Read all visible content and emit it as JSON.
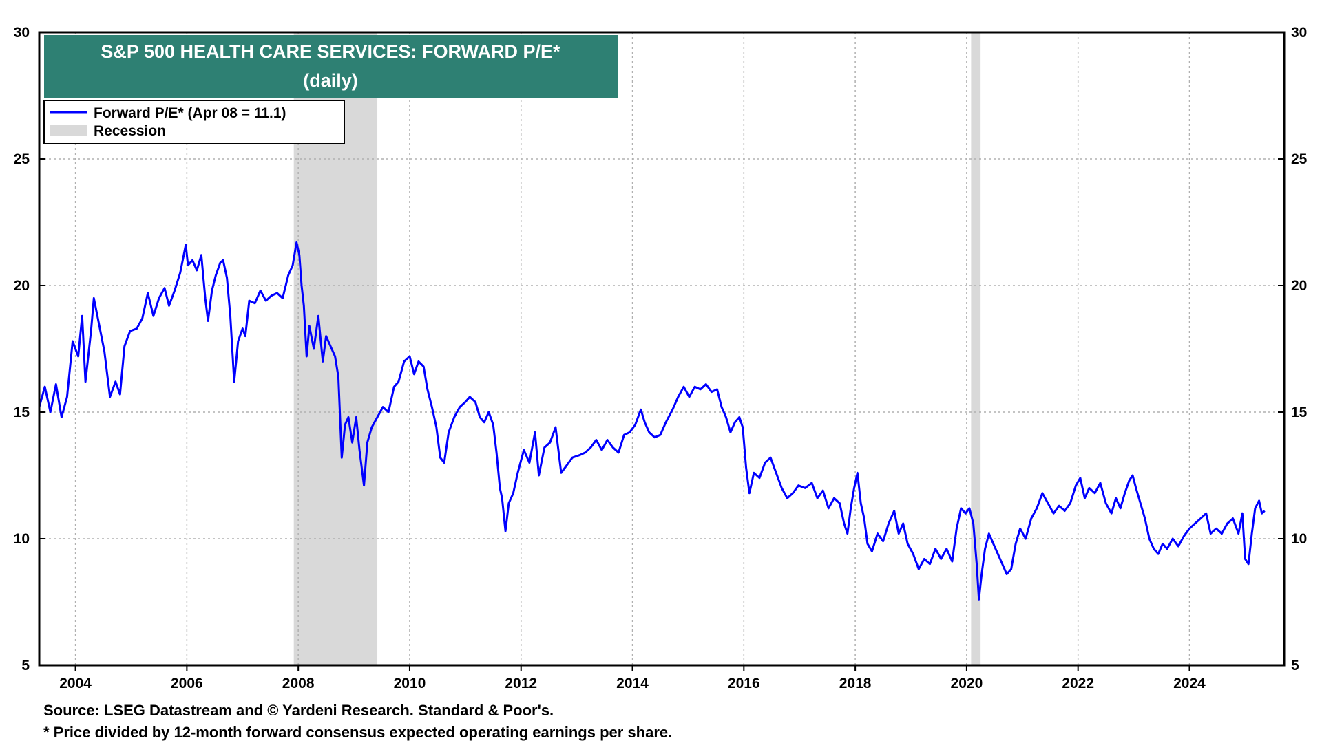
{
  "chart_data": {
    "type": "line",
    "title": "S&P 500 HEALTH CARE SERVICES: FORWARD P/E*",
    "subtitle": "(daily)",
    "xlabel": "",
    "ylabel": "",
    "x_range": [
      2003.35,
      2025.7
    ],
    "ylim": [
      5,
      30
    ],
    "x_ticks": [
      "2004",
      "2006",
      "2008",
      "2010",
      "2012",
      "2014",
      "2016",
      "2018",
      "2020",
      "2022",
      "2024"
    ],
    "y_ticks": [
      "5",
      "10",
      "15",
      "20",
      "25",
      "30"
    ],
    "grid": true,
    "legend_position": "top-left",
    "series": [
      {
        "name": "Forward P/E* (Apr 08 = 11.1)",
        "color": "#0000ff",
        "points": [
          [
            2003.35,
            15.2
          ],
          [
            2003.45,
            16.0
          ],
          [
            2003.55,
            15.0
          ],
          [
            2003.65,
            16.1
          ],
          [
            2003.75,
            14.8
          ],
          [
            2003.85,
            15.6
          ],
          [
            2003.95,
            17.8
          ],
          [
            2004.05,
            17.2
          ],
          [
            2004.12,
            18.8
          ],
          [
            2004.18,
            16.2
          ],
          [
            2004.28,
            18.2
          ],
          [
            2004.33,
            19.5
          ],
          [
            2004.42,
            18.5
          ],
          [
            2004.52,
            17.4
          ],
          [
            2004.62,
            15.6
          ],
          [
            2004.72,
            16.2
          ],
          [
            2004.8,
            15.7
          ],
          [
            2004.88,
            17.6
          ],
          [
            2004.98,
            18.2
          ],
          [
            2005.1,
            18.3
          ],
          [
            2005.2,
            18.7
          ],
          [
            2005.3,
            19.7
          ],
          [
            2005.4,
            18.8
          ],
          [
            2005.5,
            19.5
          ],
          [
            2005.6,
            19.9
          ],
          [
            2005.68,
            19.2
          ],
          [
            2005.78,
            19.8
          ],
          [
            2005.88,
            20.5
          ],
          [
            2005.98,
            21.6
          ],
          [
            2006.02,
            20.8
          ],
          [
            2006.1,
            21.0
          ],
          [
            2006.18,
            20.6
          ],
          [
            2006.26,
            21.2
          ],
          [
            2006.33,
            19.5
          ],
          [
            2006.38,
            18.6
          ],
          [
            2006.45,
            19.8
          ],
          [
            2006.52,
            20.4
          ],
          [
            2006.6,
            20.9
          ],
          [
            2006.65,
            21.0
          ],
          [
            2006.72,
            20.3
          ],
          [
            2006.78,
            18.8
          ],
          [
            2006.85,
            16.2
          ],
          [
            2006.92,
            17.8
          ],
          [
            2007.0,
            18.3
          ],
          [
            2007.05,
            18.0
          ],
          [
            2007.12,
            19.4
          ],
          [
            2007.22,
            19.3
          ],
          [
            2007.32,
            19.8
          ],
          [
            2007.42,
            19.4
          ],
          [
            2007.52,
            19.6
          ],
          [
            2007.62,
            19.7
          ],
          [
            2007.72,
            19.5
          ],
          [
            2007.82,
            20.4
          ],
          [
            2007.9,
            20.8
          ],
          [
            2007.97,
            21.7
          ],
          [
            2008.02,
            21.2
          ],
          [
            2008.06,
            20.0
          ],
          [
            2008.1,
            19.2
          ],
          [
            2008.15,
            17.2
          ],
          [
            2008.2,
            18.4
          ],
          [
            2008.28,
            17.5
          ],
          [
            2008.36,
            18.8
          ],
          [
            2008.44,
            17.0
          ],
          [
            2008.5,
            18.0
          ],
          [
            2008.58,
            17.6
          ],
          [
            2008.66,
            17.2
          ],
          [
            2008.72,
            16.4
          ],
          [
            2008.78,
            13.2
          ],
          [
            2008.84,
            14.5
          ],
          [
            2008.9,
            14.8
          ],
          [
            2008.97,
            13.8
          ],
          [
            2009.04,
            14.8
          ],
          [
            2009.1,
            13.5
          ],
          [
            2009.18,
            12.1
          ],
          [
            2009.24,
            13.8
          ],
          [
            2009.32,
            14.4
          ],
          [
            2009.42,
            14.8
          ],
          [
            2009.52,
            15.2
          ],
          [
            2009.62,
            15.0
          ],
          [
            2009.72,
            16.0
          ],
          [
            2009.8,
            16.2
          ],
          [
            2009.9,
            17.0
          ],
          [
            2010.0,
            17.2
          ],
          [
            2010.08,
            16.5
          ],
          [
            2010.16,
            17.0
          ],
          [
            2010.25,
            16.8
          ],
          [
            2010.32,
            15.9
          ],
          [
            2010.4,
            15.2
          ],
          [
            2010.48,
            14.4
          ],
          [
            2010.55,
            13.2
          ],
          [
            2010.62,
            13.0
          ],
          [
            2010.7,
            14.2
          ],
          [
            2010.8,
            14.8
          ],
          [
            2010.9,
            15.2
          ],
          [
            2011.0,
            15.4
          ],
          [
            2011.08,
            15.6
          ],
          [
            2011.18,
            15.4
          ],
          [
            2011.26,
            14.8
          ],
          [
            2011.34,
            14.6
          ],
          [
            2011.42,
            15.0
          ],
          [
            2011.5,
            14.5
          ],
          [
            2011.56,
            13.4
          ],
          [
            2011.62,
            12.0
          ],
          [
            2011.66,
            11.6
          ],
          [
            2011.72,
            10.3
          ],
          [
            2011.78,
            11.4
          ],
          [
            2011.86,
            11.8
          ],
          [
            2011.94,
            12.6
          ],
          [
            2012.05,
            13.5
          ],
          [
            2012.15,
            13.0
          ],
          [
            2012.25,
            14.2
          ],
          [
            2012.32,
            12.5
          ],
          [
            2012.42,
            13.6
          ],
          [
            2012.52,
            13.8
          ],
          [
            2012.62,
            14.4
          ],
          [
            2012.72,
            12.6
          ],
          [
            2012.82,
            12.9
          ],
          [
            2012.92,
            13.2
          ],
          [
            2013.05,
            13.3
          ],
          [
            2013.15,
            13.4
          ],
          [
            2013.25,
            13.6
          ],
          [
            2013.35,
            13.9
          ],
          [
            2013.45,
            13.5
          ],
          [
            2013.55,
            13.9
          ],
          [
            2013.65,
            13.6
          ],
          [
            2013.75,
            13.4
          ],
          [
            2013.85,
            14.1
          ],
          [
            2013.95,
            14.2
          ],
          [
            2014.05,
            14.5
          ],
          [
            2014.15,
            15.1
          ],
          [
            2014.22,
            14.6
          ],
          [
            2014.3,
            14.2
          ],
          [
            2014.4,
            14.0
          ],
          [
            2014.5,
            14.1
          ],
          [
            2014.6,
            14.6
          ],
          [
            2014.72,
            15.1
          ],
          [
            2014.82,
            15.6
          ],
          [
            2014.92,
            16.0
          ],
          [
            2015.02,
            15.6
          ],
          [
            2015.12,
            16.0
          ],
          [
            2015.22,
            15.9
          ],
          [
            2015.32,
            16.1
          ],
          [
            2015.42,
            15.8
          ],
          [
            2015.52,
            15.9
          ],
          [
            2015.6,
            15.2
          ],
          [
            2015.68,
            14.8
          ],
          [
            2015.76,
            14.2
          ],
          [
            2015.84,
            14.6
          ],
          [
            2015.92,
            14.8
          ],
          [
            2015.98,
            14.4
          ],
          [
            2016.04,
            12.8
          ],
          [
            2016.1,
            11.8
          ],
          [
            2016.18,
            12.6
          ],
          [
            2016.28,
            12.4
          ],
          [
            2016.38,
            13.0
          ],
          [
            2016.48,
            13.2
          ],
          [
            2016.58,
            12.6
          ],
          [
            2016.68,
            12.0
          ],
          [
            2016.78,
            11.6
          ],
          [
            2016.88,
            11.8
          ],
          [
            2016.98,
            12.1
          ],
          [
            2017.1,
            12.0
          ],
          [
            2017.22,
            12.2
          ],
          [
            2017.32,
            11.6
          ],
          [
            2017.42,
            11.9
          ],
          [
            2017.52,
            11.2
          ],
          [
            2017.62,
            11.6
          ],
          [
            2017.72,
            11.4
          ],
          [
            2017.8,
            10.6
          ],
          [
            2017.86,
            10.2
          ],
          [
            2017.92,
            11.2
          ],
          [
            2017.98,
            12.0
          ],
          [
            2018.04,
            12.6
          ],
          [
            2018.1,
            11.4
          ],
          [
            2018.16,
            10.8
          ],
          [
            2018.22,
            9.8
          ],
          [
            2018.3,
            9.5
          ],
          [
            2018.4,
            10.2
          ],
          [
            2018.5,
            9.9
          ],
          [
            2018.6,
            10.6
          ],
          [
            2018.7,
            11.1
          ],
          [
            2018.78,
            10.2
          ],
          [
            2018.86,
            10.6
          ],
          [
            2018.94,
            9.8
          ],
          [
            2019.04,
            9.4
          ],
          [
            2019.14,
            8.8
          ],
          [
            2019.24,
            9.2
          ],
          [
            2019.34,
            9.0
          ],
          [
            2019.44,
            9.6
          ],
          [
            2019.54,
            9.2
          ],
          [
            2019.64,
            9.6
          ],
          [
            2019.74,
            9.1
          ],
          [
            2019.82,
            10.4
          ],
          [
            2019.9,
            11.2
          ],
          [
            2019.98,
            11.0
          ],
          [
            2020.05,
            11.2
          ],
          [
            2020.12,
            10.6
          ],
          [
            2020.18,
            9.0
          ],
          [
            2020.22,
            7.6
          ],
          [
            2020.27,
            8.6
          ],
          [
            2020.33,
            9.6
          ],
          [
            2020.4,
            10.2
          ],
          [
            2020.48,
            9.8
          ],
          [
            2020.56,
            9.4
          ],
          [
            2020.64,
            9.0
          ],
          [
            2020.72,
            8.6
          ],
          [
            2020.8,
            8.8
          ],
          [
            2020.88,
            9.8
          ],
          [
            2020.96,
            10.4
          ],
          [
            2021.06,
            10.0
          ],
          [
            2021.16,
            10.8
          ],
          [
            2021.26,
            11.2
          ],
          [
            2021.36,
            11.8
          ],
          [
            2021.46,
            11.4
          ],
          [
            2021.56,
            11.0
          ],
          [
            2021.66,
            11.3
          ],
          [
            2021.76,
            11.1
          ],
          [
            2021.86,
            11.4
          ],
          [
            2021.96,
            12.1
          ],
          [
            2022.04,
            12.4
          ],
          [
            2022.12,
            11.6
          ],
          [
            2022.2,
            12.0
          ],
          [
            2022.3,
            11.8
          ],
          [
            2022.4,
            12.2
          ],
          [
            2022.5,
            11.4
          ],
          [
            2022.6,
            11.0
          ],
          [
            2022.68,
            11.6
          ],
          [
            2022.76,
            11.2
          ],
          [
            2022.84,
            11.8
          ],
          [
            2022.92,
            12.3
          ],
          [
            2022.98,
            12.5
          ],
          [
            2023.04,
            12.0
          ],
          [
            2023.12,
            11.4
          ],
          [
            2023.2,
            10.8
          ],
          [
            2023.28,
            10.0
          ],
          [
            2023.36,
            9.6
          ],
          [
            2023.44,
            9.4
          ],
          [
            2023.52,
            9.8
          ],
          [
            2023.6,
            9.6
          ],
          [
            2023.7,
            10.0
          ],
          [
            2023.8,
            9.7
          ],
          [
            2023.9,
            10.1
          ],
          [
            2024.0,
            10.4
          ],
          [
            2024.1,
            10.6
          ],
          [
            2024.2,
            10.8
          ],
          [
            2024.3,
            11.0
          ],
          [
            2024.38,
            10.2
          ],
          [
            2024.48,
            10.4
          ],
          [
            2024.58,
            10.2
          ],
          [
            2024.68,
            10.6
          ],
          [
            2024.78,
            10.8
          ],
          [
            2024.88,
            10.2
          ],
          [
            2024.95,
            11.0
          ],
          [
            2025.0,
            9.2
          ],
          [
            2025.06,
            9.0
          ],
          [
            2025.12,
            10.2
          ],
          [
            2025.18,
            11.2
          ],
          [
            2025.25,
            11.5
          ],
          [
            2025.3,
            11.0
          ],
          [
            2025.35,
            11.1
          ]
        ]
      }
    ],
    "recessions": [
      {
        "start": 2007.92,
        "end": 2009.42
      },
      {
        "start": 2020.08,
        "end": 2020.25
      }
    ],
    "legend": {
      "series_label": "Forward P/E* (Apr 08 = 11.1)",
      "recession_label": "Recession",
      "recession_color": "#d9d9d9"
    }
  },
  "colors": {
    "title_band": "#2e8073",
    "title_text": "#ffffff",
    "line": "#0000ff",
    "recession": "#d9d9d9",
    "grid": "#b0b0b0"
  },
  "footnotes": {
    "source": "Source: LSEG Datastream and © Yardeni Research. Standard & Poor's.",
    "note": "* Price divided by 12-month forward consensus expected operating earnings per share."
  }
}
